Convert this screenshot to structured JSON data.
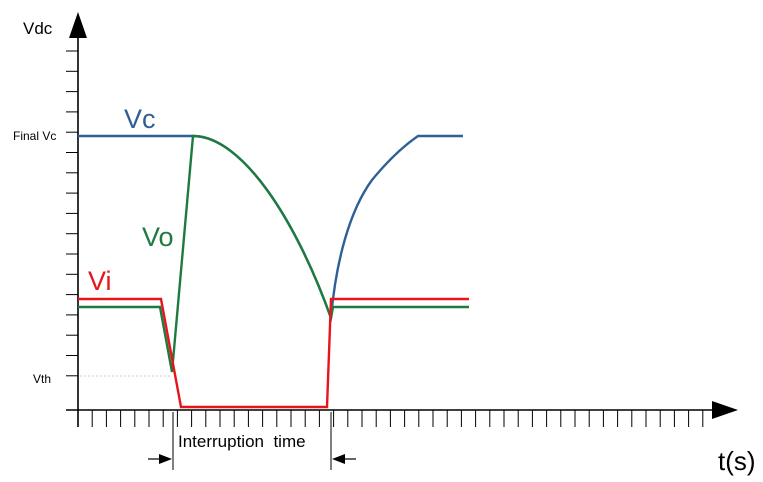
{
  "axes": {
    "y_label": "Vdc",
    "x_label": "t(s)",
    "tick_final_vc": "Final Vc",
    "tick_vth": "Vth"
  },
  "curves": {
    "vc": {
      "label": "Vc",
      "color": "#2E6096"
    },
    "vo": {
      "label": "Vo",
      "color": "#1E7A3E"
    },
    "vi": {
      "label": "Vi",
      "color": "#E8141C"
    }
  },
  "interval": {
    "label": "Interruption  time"
  }
}
